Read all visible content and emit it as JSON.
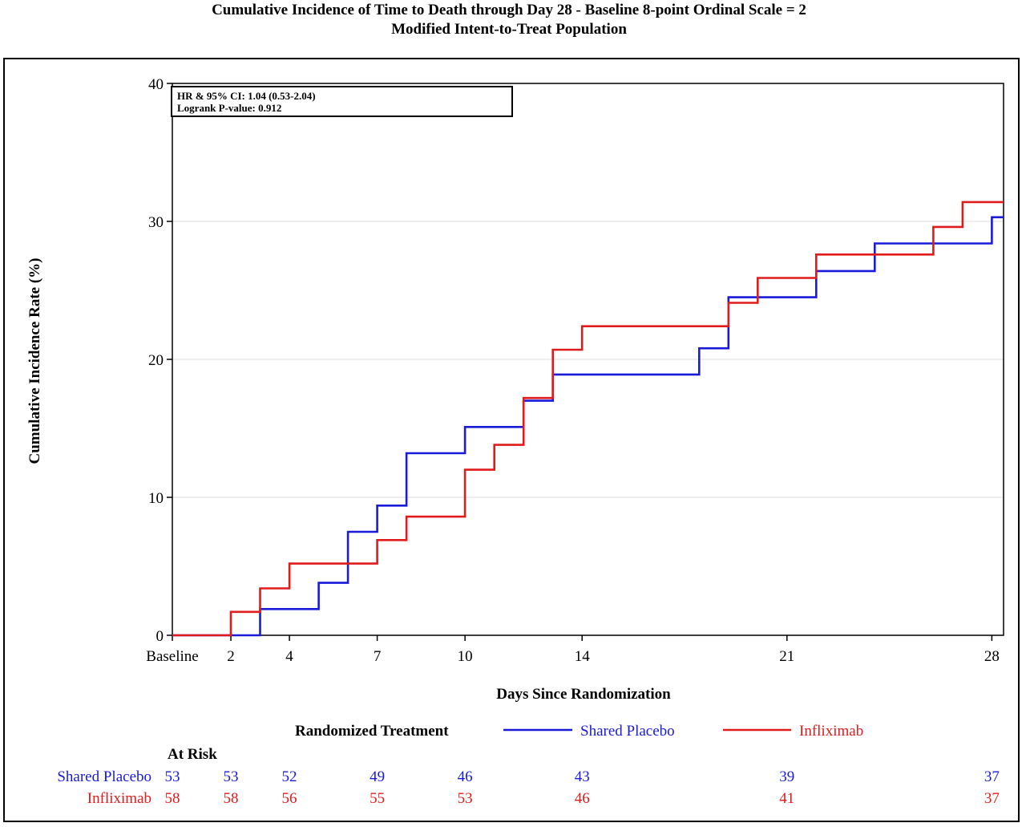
{
  "title": "Cumulative Incidence of Time to Death through Day 28 - Baseline 8-point Ordinal Scale = 2",
  "subtitle": "Modified Intent-to-Treat Population",
  "chart_data": {
    "type": "line",
    "step": true,
    "xlabel": "Days Since Randomization",
    "ylabel": "Cumulative Incidence Rate (%)",
    "xlim": [
      0,
      28.4
    ],
    "ylim": [
      0,
      40
    ],
    "x_ticks": [
      {
        "value": 0,
        "label": "Baseline"
      },
      {
        "value": 2,
        "label": "2"
      },
      {
        "value": 4,
        "label": "4"
      },
      {
        "value": 7,
        "label": "7"
      },
      {
        "value": 10,
        "label": "10"
      },
      {
        "value": 14,
        "label": "14"
      },
      {
        "value": 21,
        "label": "21"
      },
      {
        "value": 28,
        "label": "28"
      }
    ],
    "y_ticks": [
      0,
      10,
      20,
      30,
      40
    ],
    "grid": "horizontal",
    "stats_box": {
      "line1": "HR & 95% CI:  1.04 (0.53-2.04)",
      "line2": "Logrank P-value:  0.912"
    },
    "legend": {
      "title": "Randomized Treatment",
      "placement": "bottom"
    },
    "series": [
      {
        "name": "Shared Placebo",
        "color": "#1a1adb",
        "x": [
          0,
          3,
          5,
          6,
          7,
          8,
          10,
          12,
          13,
          18,
          19,
          22,
          24,
          28,
          28.4
        ],
        "y": [
          0,
          1.9,
          3.8,
          7.5,
          9.4,
          13.2,
          15.1,
          17.0,
          18.9,
          20.8,
          24.5,
          26.4,
          28.4,
          30.3,
          30.3
        ]
      },
      {
        "name": "Infliximab",
        "color": "#e01b1b",
        "x": [
          0,
          2,
          3,
          4,
          7,
          8,
          10,
          11,
          12,
          13,
          14,
          19,
          20,
          22,
          26,
          27,
          28.4
        ],
        "y": [
          0,
          1.7,
          3.4,
          5.2,
          6.9,
          8.6,
          12.0,
          13.8,
          17.2,
          20.7,
          22.4,
          24.1,
          25.9,
          27.6,
          29.6,
          31.4,
          31.4
        ]
      }
    ],
    "at_risk": {
      "title": "At Risk",
      "times": [
        0,
        2,
        4,
        7,
        10,
        14,
        21,
        28
      ],
      "rows": [
        {
          "name": "Shared Placebo",
          "color": "#1a1adb",
          "values": [
            "53",
            "53",
            "52",
            "49",
            "46",
            "43",
            "39",
            "37"
          ]
        },
        {
          "name": "Infliximab",
          "color": "#e01b1b",
          "values": [
            "58",
            "58",
            "56",
            "55",
            "53",
            "46",
            "41",
            "37"
          ]
        }
      ]
    }
  }
}
